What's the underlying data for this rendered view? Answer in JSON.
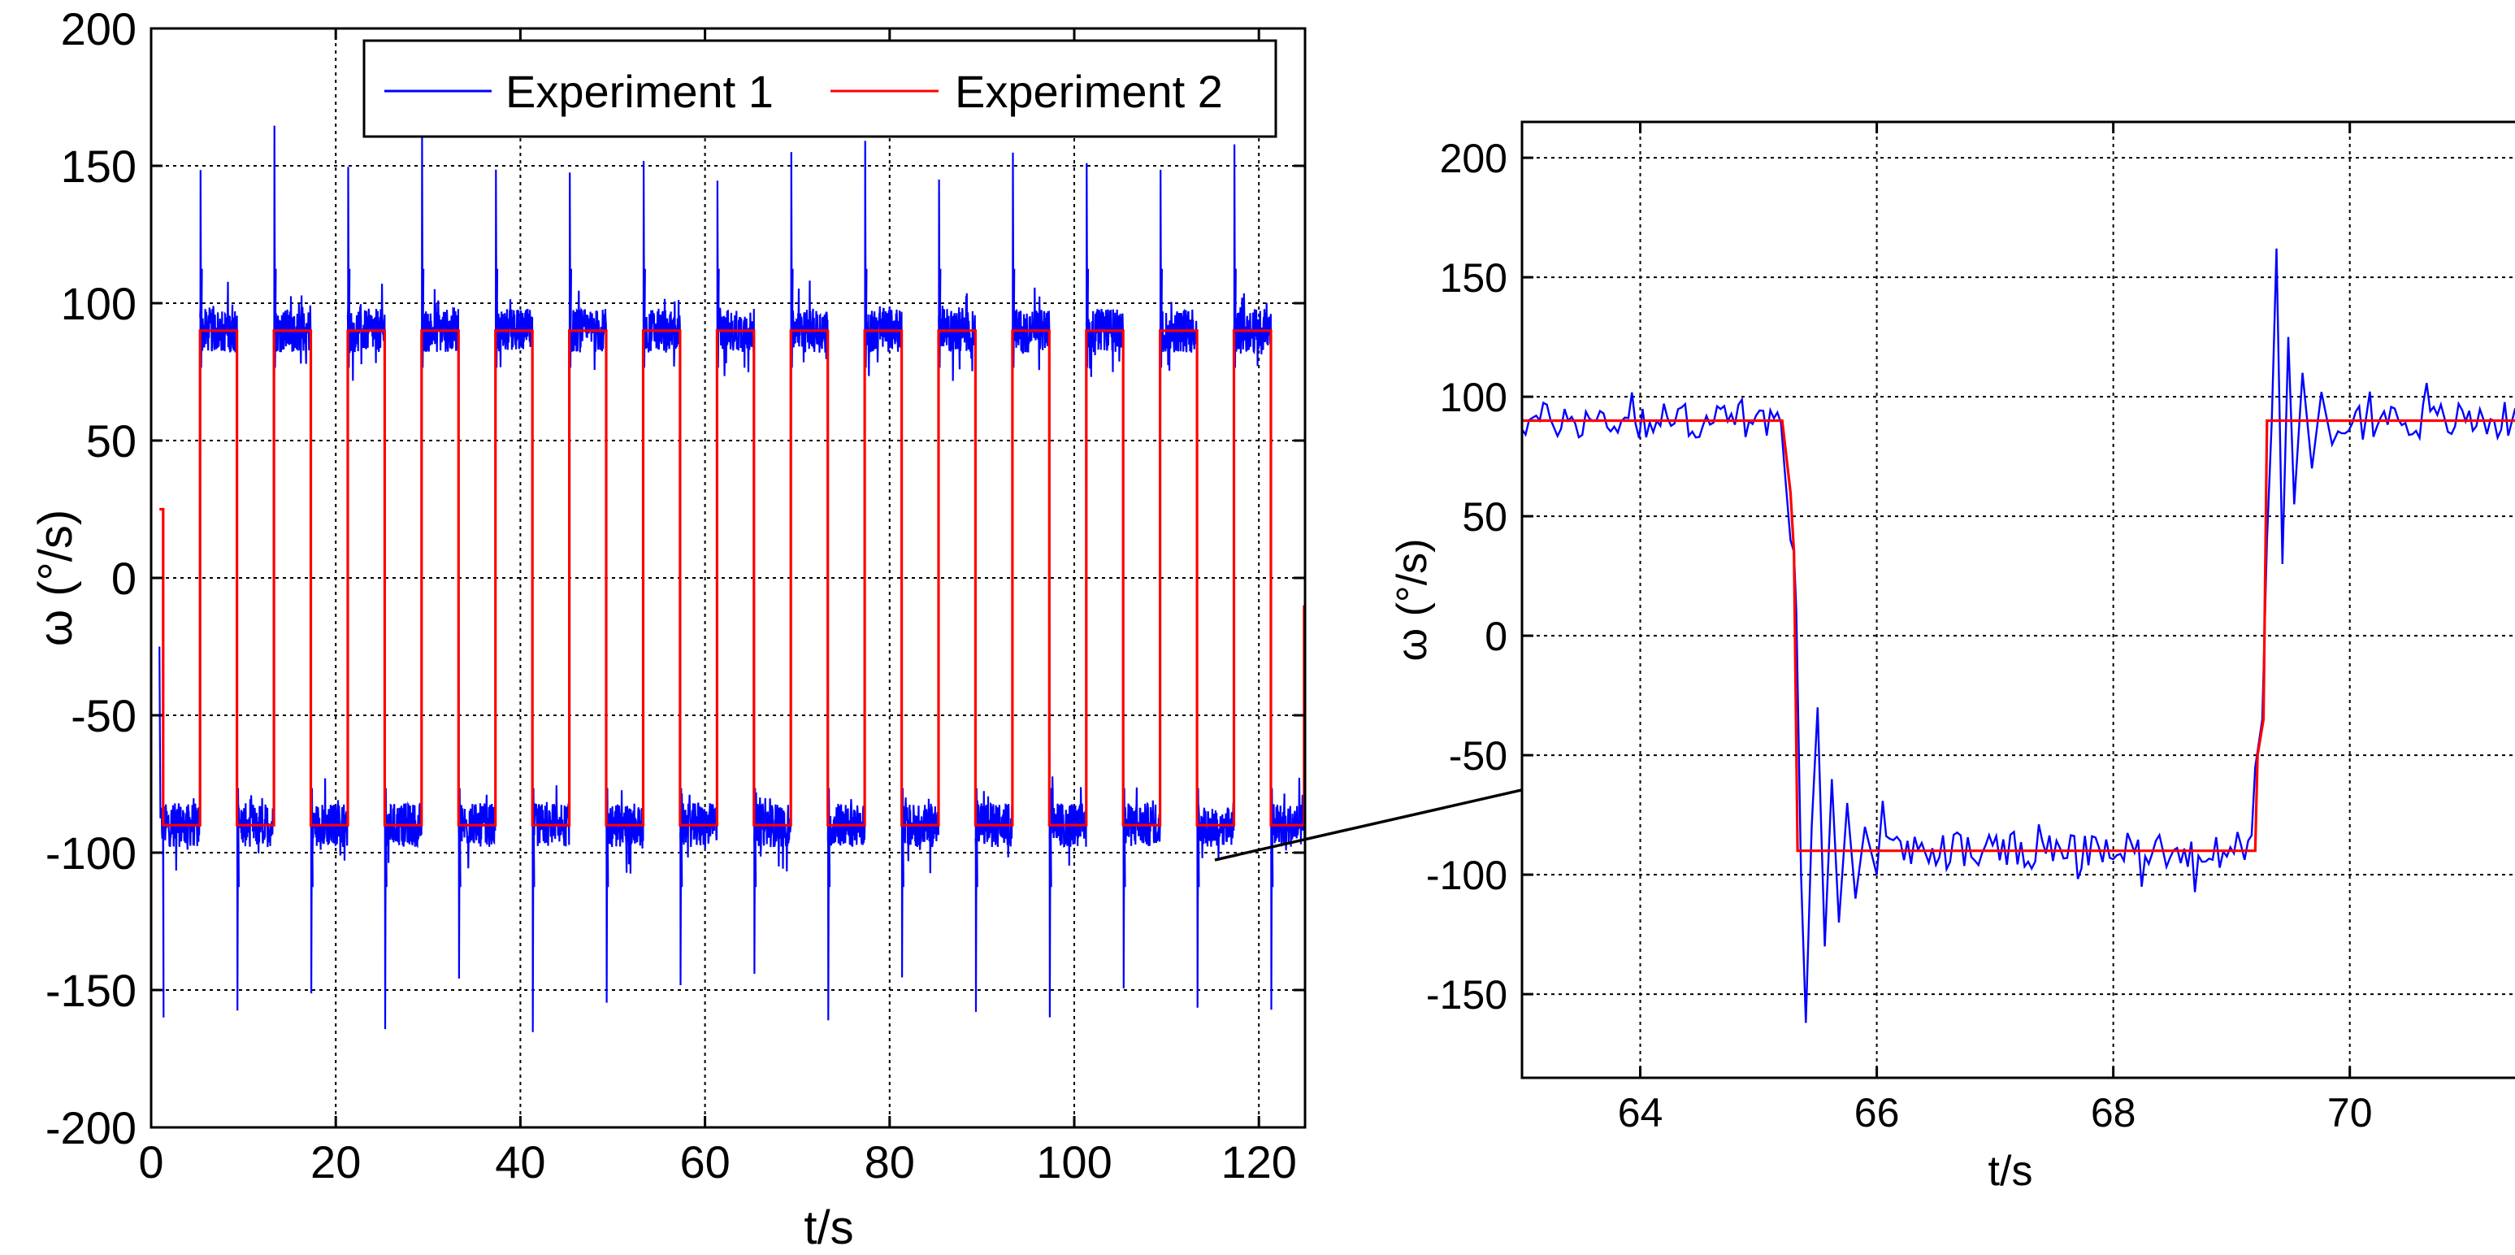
{
  "chart_data": [
    {
      "id": "main",
      "type": "line",
      "title": "",
      "xlabel": "t/s",
      "ylabel": "ω (°/s)",
      "xlim": [
        0,
        125
      ],
      "ylim": [
        -200,
        200
      ],
      "xticks": [
        0,
        20,
        40,
        60,
        80,
        100,
        120
      ],
      "yticks": [
        -200,
        -150,
        -100,
        -50,
        0,
        50,
        100,
        150,
        200
      ],
      "xtick_labels": [
        "0",
        "20",
        "40",
        "60",
        "80",
        "100",
        "120"
      ],
      "ytick_labels": [
        "-200",
        "-150",
        "-100",
        "-50",
        "0",
        "50",
        "100",
        "150",
        "200"
      ],
      "grid": true,
      "legend_position": "top-right",
      "series": [
        {
          "name": "Experiment 1",
          "color": "#0000ff",
          "description": "square wave ±90 with noise and overshoot spikes at each switch",
          "levels": [
            -90,
            90
          ],
          "noise_amplitude": 8,
          "spike_peak_up": 157,
          "spike_peak_down": -165
        },
        {
          "name": "Experiment 2",
          "color": "#ff0000",
          "description": "ideal square wave ±90",
          "start_value": 25,
          "levels": [
            -90,
            90
          ],
          "transitions": [
            1.3,
            5.3,
            9.3,
            13.3,
            17.3,
            21.3,
            25.3,
            29.3,
            33.3,
            37.3,
            41.3,
            45.3,
            49.3,
            53.3,
            57.3,
            61.3,
            65.3,
            69.3,
            73.3,
            77.3,
            81.3,
            85.3,
            89.3,
            93.3,
            97.3,
            101.3,
            105.3,
            109.3,
            113.3,
            117.3,
            121.3
          ],
          "end_value": -10
        }
      ],
      "legend": [
        "Experiment 1",
        "Experiment 2"
      ]
    },
    {
      "id": "zoom",
      "type": "line",
      "title": "",
      "xlabel": "t/s",
      "ylabel": "ω (°/s)",
      "xlim": [
        63,
        71.5
      ],
      "ylim": [
        -185,
        215
      ],
      "xticks": [
        64,
        66,
        68,
        70
      ],
      "yticks": [
        -150,
        -100,
        -50,
        0,
        50,
        100,
        150,
        200
      ],
      "xtick_labels": [
        "64",
        "66",
        "68",
        "70"
      ],
      "ytick_labels": [
        "-150",
        "-100",
        "-50",
        "0",
        "50",
        "100",
        "150",
        "200"
      ],
      "grid": true,
      "series": [
        {
          "name": "Experiment 1",
          "color": "#0000ff",
          "levels": [
            90,
            -90,
            90
          ],
          "switch_times": [
            65.2,
            69.25
          ],
          "min_value": -162,
          "max_value": 162,
          "noise_amplitude": 8
        },
        {
          "name": "Experiment 2",
          "color": "#ff0000",
          "points": [
            [
              63,
              90
            ],
            [
              65.2,
              90
            ],
            [
              65.27,
              60
            ],
            [
              65.3,
              35
            ],
            [
              65.33,
              -90
            ],
            [
              69.2,
              -90
            ],
            [
              69.22,
              -50
            ],
            [
              69.27,
              -35
            ],
            [
              69.3,
              90
            ],
            [
              71.5,
              90
            ]
          ]
        }
      ]
    }
  ],
  "annotation": {
    "type": "arrow",
    "meaning": "zoom-in callout from the main plot to the enlarged plot"
  }
}
